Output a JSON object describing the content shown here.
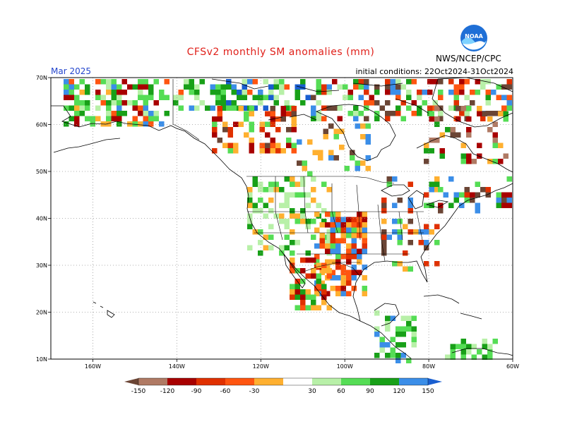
{
  "title": "CFSv2 monthly SM anomalies (mm)",
  "month": "Mar 2025",
  "initial_conditions": "initial conditions: 22Oct2024-31Oct2024",
  "agency": "NWS/NCEP/CPC",
  "logo_text": "NOAA",
  "lat_labels": [
    "70N",
    "60N",
    "50N",
    "40N",
    "30N",
    "20N",
    "10N"
  ],
  "lon_labels": [
    "160W",
    "140W",
    "120W",
    "100W",
    "80W",
    "60W"
  ],
  "colorbar": {
    "labels": [
      "-150",
      "-120",
      "-90",
      "-60",
      "-30",
      "30",
      "60",
      "90",
      "120",
      "150"
    ],
    "colors": [
      "#6b4535",
      "#b07a64",
      "#a80000",
      "#e03000",
      "#ff5510",
      "#ffb030",
      "#ffffff",
      "#b8f0a8",
      "#55dd55",
      "#18a018",
      "#3b8ee8",
      "#1a5fd0"
    ]
  }
}
